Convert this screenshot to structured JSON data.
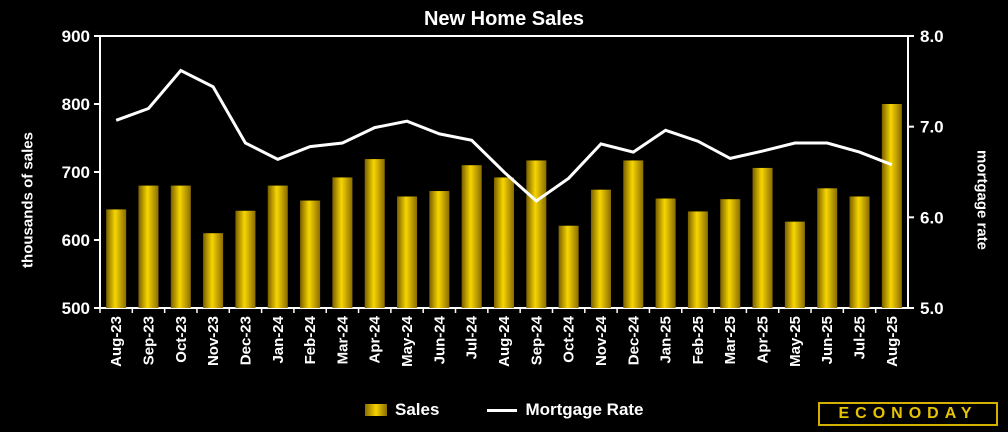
{
  "chart_data": {
    "type": "bar",
    "title": "New Home Sales",
    "ylabel": "thousands of sales",
    "y2label": "mortgage rate",
    "ylim": [
      500,
      900
    ],
    "y2lim": [
      5.0,
      8.0
    ],
    "y_ticks": [
      "500",
      "600",
      "700",
      "800",
      "900"
    ],
    "y2_ticks": [
      "5.0",
      "6.0",
      "7.0",
      "8.0"
    ],
    "categories": [
      "Aug-23",
      "Sep-23",
      "Oct-23",
      "Nov-23",
      "Dec-23",
      "Jan-24",
      "Feb-24",
      "Mar-24",
      "Apr-24",
      "May-24",
      "Jun-24",
      "Jul-24",
      "Aug-24",
      "Sep-24",
      "Oct-24",
      "Nov-24",
      "Dec-24",
      "Jan-25",
      "Feb-25",
      "Mar-25",
      "Apr-25",
      "May-25",
      "Jun-25",
      "Jul-25",
      "Aug-25"
    ],
    "series": [
      {
        "name": "Sales",
        "type": "bar",
        "axis": "left",
        "values": [
          645,
          680,
          680,
          610,
          643,
          680,
          658,
          692,
          719,
          664,
          672,
          710,
          692,
          717,
          621,
          674,
          717,
          661,
          642,
          660,
          706,
          627,
          676,
          664,
          800
        ]
      },
      {
        "name": "Mortgage Rate",
        "type": "line",
        "axis": "right",
        "values": [
          7.07,
          7.2,
          7.62,
          7.44,
          6.82,
          6.64,
          6.78,
          6.82,
          6.99,
          7.06,
          6.92,
          6.85,
          6.5,
          6.18,
          6.43,
          6.81,
          6.72,
          6.96,
          6.84,
          6.65,
          6.73,
          6.82,
          6.82,
          6.72,
          6.58
        ]
      }
    ],
    "legend": "bottom",
    "grid": false
  },
  "colors": {
    "bar": "#e8c400",
    "line": "#ffffff",
    "background": "#000000"
  },
  "logo": "ECONODAY"
}
